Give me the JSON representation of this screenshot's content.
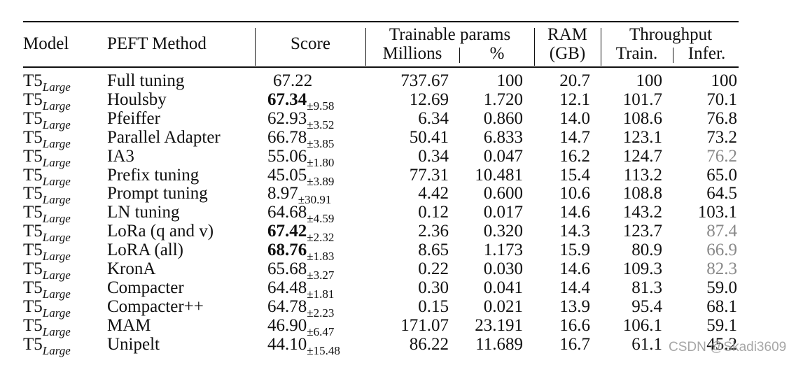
{
  "header": {
    "model": "Model",
    "method": "PEFT Method",
    "score": "Score",
    "trainable": "Trainable params",
    "millions": "Millions",
    "percent": "%",
    "ram": "RAM",
    "ram_unit": "(GB)",
    "throughput": "Throughput",
    "train": "Train.",
    "infer": "Infer."
  },
  "rows": [
    {
      "model": "T5",
      "model_sub": "Large",
      "method": "Full tuning",
      "score": "67.22",
      "std": "",
      "millions": "737.67",
      "percent": "100",
      "ram": "20.7",
      "train": "100",
      "infer": "100"
    },
    {
      "model": "T5",
      "model_sub": "Large",
      "method": "Houlsby",
      "score": "67.34",
      "std": "±9.58",
      "millions": "12.69",
      "percent": "1.720",
      "ram": "12.1",
      "train": "101.7",
      "infer": "70.1"
    },
    {
      "model": "T5",
      "model_sub": "Large",
      "method": "Pfeiffer",
      "score": "62.93",
      "std": "±3.52",
      "millions": "6.34",
      "percent": "0.860",
      "ram": "14.0",
      "train": "108.6",
      "infer": "76.8"
    },
    {
      "model": "T5",
      "model_sub": "Large",
      "method": "Parallel Adapter",
      "score": "66.78",
      "std": "±3.85",
      "millions": "50.41",
      "percent": "6.833",
      "ram": "14.7",
      "train": "123.1",
      "infer": "73.2"
    },
    {
      "model": "T5",
      "model_sub": "Large",
      "method": "IA3",
      "score": "55.06",
      "std": "±1.80",
      "millions": "0.34",
      "percent": "0.047",
      "ram": "16.2",
      "train": "124.7",
      "infer": "76.2"
    },
    {
      "model": "T5",
      "model_sub": "Large",
      "method": "Prefix tuning",
      "score": "45.05",
      "std": "±3.89",
      "millions": "77.31",
      "percent": "10.481",
      "ram": "15.4",
      "train": "113.2",
      "infer": "65.0"
    },
    {
      "model": "T5",
      "model_sub": "Large",
      "method": "Prompt tuning",
      "score": "8.97",
      "std": "±30.91",
      "millions": "4.42",
      "percent": "0.600",
      "ram": "10.6",
      "train": "108.8",
      "infer": "64.5"
    },
    {
      "model": "T5",
      "model_sub": "Large",
      "method": "LN tuning",
      "score": "64.68",
      "std": "±4.59",
      "millions": "0.12",
      "percent": "0.017",
      "ram": "14.6",
      "train": "143.2",
      "infer": "103.1"
    },
    {
      "model": "T5",
      "model_sub": "Large",
      "method": "LoRa (q and v)",
      "score": "67.42",
      "std": "±2.32",
      "millions": "2.36",
      "percent": "0.320",
      "ram": "14.3",
      "train": "123.7",
      "infer": "87.4"
    },
    {
      "model": "T5",
      "model_sub": "Large",
      "method": "LoRA (all)",
      "score": "68.76",
      "std": "±1.83",
      "millions": "8.65",
      "percent": "1.173",
      "ram": "15.9",
      "train": "80.9",
      "infer": "66.9"
    },
    {
      "model": "T5",
      "model_sub": "Large",
      "method": "KronA",
      "score": "65.68",
      "std": "±3.27",
      "millions": "0.22",
      "percent": "0.030",
      "ram": "14.6",
      "train": "109.3",
      "infer": "82.3"
    },
    {
      "model": "T5",
      "model_sub": "Large",
      "method": "Compacter",
      "score": "64.48",
      "std": "±1.81",
      "millions": "0.30",
      "percent": "0.041",
      "ram": "14.4",
      "train": "81.3",
      "infer": "59.0"
    },
    {
      "model": "T5",
      "model_sub": "Large",
      "method": "Compacter++",
      "score": "64.78",
      "std": "±2.23",
      "millions": "0.15",
      "percent": "0.021",
      "ram": "13.9",
      "train": "95.4",
      "infer": "68.1"
    },
    {
      "model": "T5",
      "model_sub": "Large",
      "method": "MAM",
      "score": "46.90",
      "std": "±6.47",
      "millions": "171.07",
      "percent": "23.191",
      "ram": "16.6",
      "train": "106.1",
      "infer": "59.1"
    },
    {
      "model": "T5",
      "model_sub": "Large",
      "method": "Unipelt",
      "score": "44.10",
      "std": "±15.48",
      "millions": "86.22",
      "percent": "11.689",
      "ram": "16.7",
      "train": "61.1",
      "infer": "45.2"
    }
  ],
  "watermark": "CSDN @Skadi3609"
}
